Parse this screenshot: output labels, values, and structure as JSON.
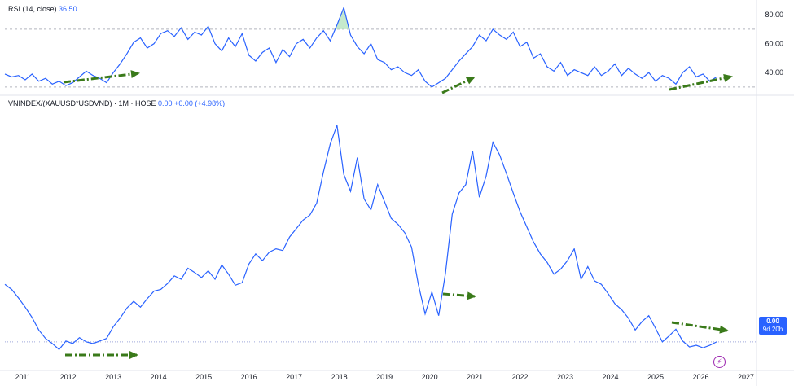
{
  "rsi_legend": {
    "title": "RSI (14, close)",
    "value": "36.50"
  },
  "main_legend": {
    "title": "VNINDEX/(XAUUSD*USDVND) · 1M · HOSE",
    "value": "0.00",
    "change": "+0.00 (+4.98%)"
  },
  "price_tag": {
    "value": "0.00",
    "countdown": "9d 20h"
  },
  "colors": {
    "line": "#2962ff",
    "arrow": "#3a7a1a",
    "overbought_fill": "#b7e4c0",
    "band": "#b2b5be",
    "tag": "#2962ff"
  },
  "icons": {
    "flash": "lightning-icon"
  },
  "chart_data": [
    {
      "type": "line",
      "panel": "RSI",
      "title": "RSI (14, close)",
      "x": [
        2010.6,
        2010.75,
        2010.9,
        2011.05,
        2011.2,
        2011.35,
        2011.5,
        2011.65,
        2011.8,
        2011.95,
        2012.1,
        2012.25,
        2012.4,
        2012.55,
        2012.7,
        2012.85,
        2013.0,
        2013.15,
        2013.3,
        2013.45,
        2013.6,
        2013.75,
        2013.9,
        2014.05,
        2014.2,
        2014.35,
        2014.5,
        2014.65,
        2014.8,
        2014.95,
        2015.1,
        2015.25,
        2015.4,
        2015.55,
        2015.7,
        2015.85,
        2016.0,
        2016.15,
        2016.3,
        2016.45,
        2016.6,
        2016.75,
        2016.9,
        2017.05,
        2017.2,
        2017.35,
        2017.5,
        2017.65,
        2017.8,
        2017.95,
        2018.1,
        2018.25,
        2018.4,
        2018.55,
        2018.7,
        2018.85,
        2019.0,
        2019.15,
        2019.3,
        2019.45,
        2019.6,
        2019.75,
        2019.9,
        2020.05,
        2020.2,
        2020.35,
        2020.5,
        2020.65,
        2020.8,
        2020.95,
        2021.1,
        2021.25,
        2021.4,
        2021.55,
        2021.7,
        2021.85,
        2022.0,
        2022.15,
        2022.3,
        2022.45,
        2022.6,
        2022.75,
        2022.9,
        2023.05,
        2023.2,
        2023.35,
        2023.5,
        2023.65,
        2023.8,
        2023.95,
        2024.1,
        2024.25,
        2024.4,
        2024.55,
        2024.7,
        2024.85,
        2025.0,
        2025.15,
        2025.3,
        2025.45,
        2025.6,
        2025.75,
        2025.9,
        2026.05,
        2026.2,
        2026.35
      ],
      "y": [
        39,
        37,
        38,
        35,
        39,
        34,
        36,
        32,
        34,
        31,
        33,
        37,
        41,
        38,
        36,
        33,
        40,
        46,
        53,
        61,
        64,
        57,
        60,
        67,
        69,
        65,
        71,
        63,
        68,
        66,
        72,
        60,
        55,
        64,
        58,
        67,
        52,
        48,
        54,
        57,
        47,
        56,
        51,
        60,
        63,
        57,
        64,
        69,
        62,
        73,
        85,
        66,
        58,
        53,
        60,
        49,
        47,
        42,
        44,
        40,
        38,
        42,
        34,
        30,
        33,
        36,
        42,
        48,
        53,
        58,
        66,
        62,
        70,
        66,
        63,
        68,
        58,
        61,
        50,
        53,
        44,
        41,
        47,
        38,
        42,
        40,
        38,
        44,
        38,
        41,
        46,
        38,
        43,
        39,
        36,
        40,
        34,
        38,
        36,
        32,
        40,
        44,
        37,
        39,
        34,
        37
      ],
      "ylim": [
        26,
        88
      ],
      "y_ticks": [
        "80.00",
        "60.00",
        "40.00"
      ],
      "y_tick_values": [
        80,
        60,
        40
      ],
      "bands": [
        70,
        30
      ]
    },
    {
      "type": "line",
      "panel": "VNINDEX/(XAUUSD*USDVND)",
      "x_ticks": [
        "2011",
        "2012",
        "2013",
        "2014",
        "2015",
        "2016",
        "2017",
        "2018",
        "2019",
        "2020",
        "2021",
        "2022",
        "2023",
        "2024",
        "2025",
        "2026",
        "2027"
      ],
      "x_tick_values": [
        2011,
        2012,
        2013,
        2014,
        2015,
        2016,
        2017,
        2018,
        2019,
        2020,
        2021,
        2022,
        2023,
        2024,
        2025,
        2026,
        2027
      ],
      "x": [
        2010.6,
        2010.75,
        2010.9,
        2011.05,
        2011.2,
        2011.35,
        2011.5,
        2011.65,
        2011.8,
        2011.95,
        2012.1,
        2012.25,
        2012.4,
        2012.55,
        2012.7,
        2012.85,
        2013.0,
        2013.15,
        2013.3,
        2013.45,
        2013.6,
        2013.75,
        2013.9,
        2014.05,
        2014.2,
        2014.35,
        2014.5,
        2014.65,
        2014.8,
        2014.95,
        2015.1,
        2015.25,
        2015.4,
        2015.55,
        2015.7,
        2015.85,
        2016.0,
        2016.15,
        2016.3,
        2016.45,
        2016.6,
        2016.75,
        2016.9,
        2017.05,
        2017.2,
        2017.35,
        2017.5,
        2017.65,
        2017.8,
        2017.95,
        2018.1,
        2018.25,
        2018.4,
        2018.55,
        2018.7,
        2018.85,
        2019.0,
        2019.15,
        2019.3,
        2019.45,
        2019.6,
        2019.75,
        2019.9,
        2020.05,
        2020.2,
        2020.35,
        2020.5,
        2020.65,
        2020.8,
        2020.95,
        2021.1,
        2021.25,
        2021.4,
        2021.55,
        2021.7,
        2021.85,
        2022.0,
        2022.15,
        2022.3,
        2022.45,
        2022.6,
        2022.75,
        2022.9,
        2023.05,
        2023.2,
        2023.35,
        2023.5,
        2023.65,
        2023.8,
        2023.95,
        2024.1,
        2024.25,
        2024.4,
        2024.55,
        2024.7,
        2024.85,
        2025.0,
        2025.15,
        2025.3,
        2025.45,
        2025.6,
        2025.75,
        2025.9,
        2026.05,
        2026.2,
        2026.35
      ],
      "y": [
        0.72,
        0.66,
        0.56,
        0.45,
        0.33,
        0.18,
        0.08,
        0.02,
        -0.05,
        0.05,
        0.02,
        0.09,
        0.04,
        0.02,
        0.05,
        0.08,
        0.22,
        0.32,
        0.44,
        0.52,
        0.45,
        0.55,
        0.64,
        0.66,
        0.73,
        0.82,
        0.78,
        0.91,
        0.86,
        0.8,
        0.88,
        0.78,
        0.95,
        0.84,
        0.71,
        0.74,
        0.96,
        1.08,
        1.0,
        1.1,
        1.14,
        1.12,
        1.28,
        1.38,
        1.48,
        1.54,
        1.68,
        2.05,
        2.38,
        2.6,
        2.02,
        1.82,
        2.22,
        1.73,
        1.6,
        1.9,
        1.7,
        1.5,
        1.43,
        1.33,
        1.16,
        0.72,
        0.37,
        0.63,
        0.35,
        0.85,
        1.55,
        1.8,
        1.9,
        2.3,
        1.75,
        2.0,
        2.4,
        2.25,
        2.03,
        1.8,
        1.58,
        1.4,
        1.22,
        1.08,
        0.98,
        0.84,
        0.9,
        1.0,
        1.14,
        0.78,
        0.93,
        0.76,
        0.72,
        0.61,
        0.49,
        0.42,
        0.32,
        0.18,
        0.28,
        0.35,
        0.2,
        0.04,
        0.11,
        0.19,
        0.05,
        -0.02,
        0.0,
        -0.03,
        0.0,
        0.04
      ],
      "ylim": [
        -0.25,
        2.85
      ],
      "price_line": 0.04
    }
  ]
}
